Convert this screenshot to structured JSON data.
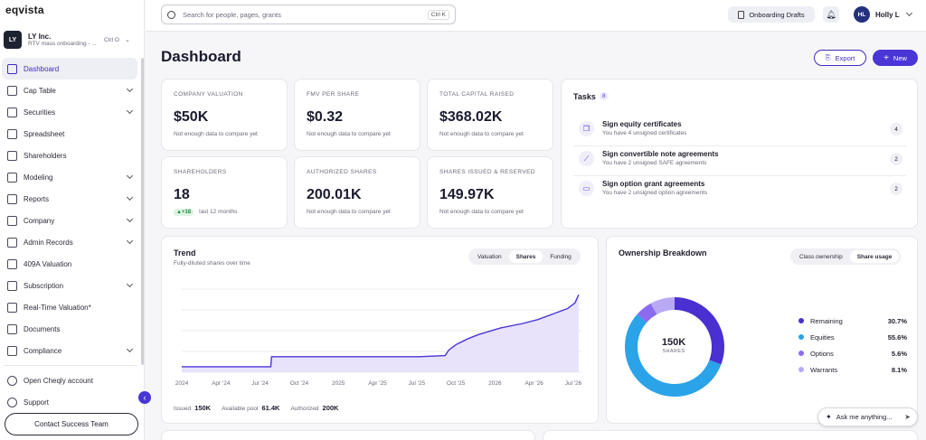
{
  "app": {
    "logo": "eqvista"
  },
  "org": {
    "initials": "LY",
    "name": "LY Inc.",
    "sub": "RTV mass onboarding - ...",
    "shortcut": "Ctrl O"
  },
  "sidebar": {
    "items": [
      {
        "label": "Dashboard",
        "icon": "grid-icon",
        "chevron": false,
        "active": true
      },
      {
        "label": "Cap Table",
        "icon": "pie-icon",
        "chevron": true
      },
      {
        "label": "Securities",
        "icon": "securities-icon",
        "chevron": true
      },
      {
        "label": "Spreadsheet",
        "icon": "table-icon",
        "chevron": false
      },
      {
        "label": "Shareholders",
        "icon": "users-icon",
        "chevron": false
      },
      {
        "label": "Modeling",
        "icon": "modeling-icon",
        "chevron": true
      },
      {
        "label": "Reports",
        "icon": "reports-icon",
        "chevron": true
      },
      {
        "label": "Company",
        "icon": "building-icon",
        "chevron": true
      },
      {
        "label": "Admin Records",
        "icon": "shield-icon",
        "chevron": true
      },
      {
        "label": "409A Valuation",
        "icon": "shield-check-icon",
        "chevron": false
      },
      {
        "label": "Subscription",
        "icon": "subscription-icon",
        "chevron": true
      },
      {
        "label": "Real-Time Valuation*",
        "icon": "chart-line-icon",
        "chevron": false
      },
      {
        "label": "Documents",
        "icon": "document-icon",
        "chevron": false
      },
      {
        "label": "Compliance",
        "icon": "compliance-icon",
        "chevron": true
      }
    ],
    "bottom": [
      {
        "label": "Open Cheqly account",
        "icon": "cheqly-icon"
      },
      {
        "label": "Support",
        "icon": "help-icon"
      }
    ],
    "contact": "Contact Success Team"
  },
  "topbar": {
    "search_placeholder": "Search for people, pages, grants",
    "search_shortcut": "Ctrl K",
    "drafts": "Onboarding Drafts",
    "user_initials": "HL",
    "user_name": "Holly L"
  },
  "header": {
    "title": "Dashboard",
    "export": "Export",
    "new": "New"
  },
  "kpis": [
    {
      "label": "Company Valuation",
      "value": "$50K",
      "note": "Not enough data to compare yet"
    },
    {
      "label": "FMV per share",
      "value": "$0.32",
      "note": "Not enough data to compare yet"
    },
    {
      "label": "Total Capital Raised",
      "value": "$368.02K",
      "note": "Not enough data to compare yet"
    },
    {
      "label": "Shareholders",
      "value": "18",
      "badge": "▲+18",
      "note": "last 12 months"
    },
    {
      "label": "Authorized Shares",
      "value": "200.01K",
      "note": "Not enough data to compare yet"
    },
    {
      "label": "Shares Issued & Reserved",
      "value": "149.97K",
      "note": "Not enough data to compare yet"
    }
  ],
  "tasks": {
    "title": "Tasks",
    "count": "8",
    "items": [
      {
        "title": "Sign equity certificates",
        "sub": "You have 4 unsigned certificates",
        "count": "4",
        "icon": "certificate-icon"
      },
      {
        "title": "Sign convertible note agreements",
        "sub": "You have 2 unsigned SAFE agreements",
        "count": "2",
        "icon": "note-icon"
      },
      {
        "title": "Sign option grant agreements",
        "sub": "You have 2 unsigned option agreements",
        "count": "2",
        "icon": "grant-icon"
      }
    ]
  },
  "trend": {
    "title": "Trend",
    "subtitle": "Fully-diluted shares over time",
    "tabs": [
      "Valuation",
      "Shares",
      "Funding"
    ],
    "active_tab": "Shares",
    "footer": [
      {
        "label": "Issued",
        "value": "150K"
      },
      {
        "label": "Available pool",
        "value": "61.4K"
      },
      {
        "label": "Authorized",
        "value": "200K"
      }
    ]
  },
  "ownership": {
    "title": "Ownership Breakdown",
    "tabs": [
      "Class ownership",
      "Share usage"
    ],
    "active_tab": "Share usage",
    "center_value": "150K",
    "center_label": "SHARES",
    "legend": [
      {
        "label": "Remaining",
        "value": "30.7%",
        "pct": 30.7,
        "color": "#4a2fd1"
      },
      {
        "label": "Equities",
        "value": "55.6%",
        "pct": 55.6,
        "color": "#2aa3e8"
      },
      {
        "label": "Options",
        "value": "5.6%",
        "pct": 5.6,
        "color": "#8b6cf0"
      },
      {
        "label": "Warrants",
        "value": "8.1%",
        "pct": 8.1,
        "color": "#b9a9f5"
      }
    ]
  },
  "chart_data": {
    "type": "line",
    "title": "Trend",
    "subtitle": "Fully-diluted shares over time",
    "x_tick_labels": [
      "2024",
      "Apr '24",
      "Jul '24",
      "Oct '24",
      "2025",
      "Apr '25",
      "Jul '25",
      "Oct '25",
      "2026",
      "Apr '26",
      "Jul '26"
    ],
    "x": [
      0,
      0.5,
      1.0,
      1.2,
      1.21,
      3.2,
      3.55,
      3.6,
      3.7,
      3.85,
      4.0,
      4.3,
      4.6,
      4.8,
      5.0,
      5.2,
      5.3,
      5.35
    ],
    "y": [
      10,
      10,
      10,
      10,
      28,
      28,
      30,
      40,
      50,
      60,
      68,
      80,
      88,
      95,
      105,
      115,
      125,
      140
    ],
    "color": "#4a35d6",
    "fill": "#e8e3fb",
    "grid": true
  },
  "ask": {
    "label": "Ask me anything..."
  }
}
